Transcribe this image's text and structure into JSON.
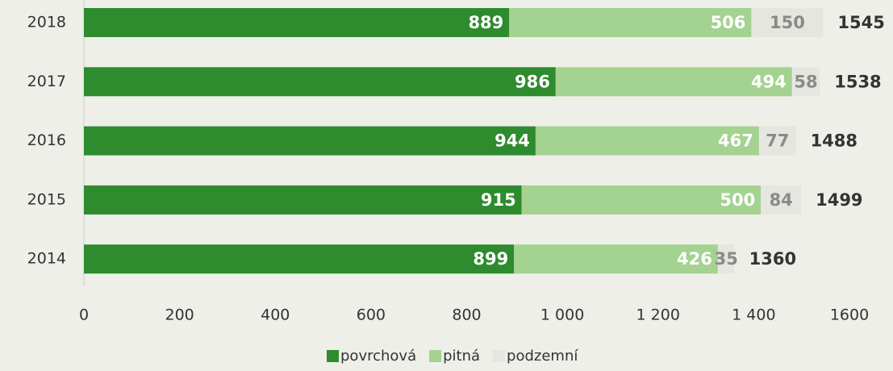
{
  "chart_data": {
    "type": "stacked-bar-horizontal",
    "categories": [
      "2018",
      "2017",
      "2016",
      "2015",
      "2014"
    ],
    "series": [
      {
        "name": "povrchová",
        "color": "#2e8b2e",
        "values": [
          889,
          986,
          944,
          915,
          899
        ]
      },
      {
        "name": "pitná",
        "color": "#a4d290",
        "values": [
          506,
          494,
          467,
          500,
          426
        ]
      },
      {
        "name": "podzemní",
        "color": "#e6e6e1",
        "values": [
          150,
          58,
          77,
          84,
          35
        ]
      }
    ],
    "totals": [
      1545,
      1538,
      1488,
      1499,
      1360
    ],
    "xlim": [
      0,
      1600
    ],
    "xticks": [
      0,
      200,
      400,
      600,
      800,
      {
        "value": 1000,
        "label": "1 000"
      },
      {
        "value": 1200,
        "label": "1 200"
      },
      {
        "value": 1400,
        "label": "1 400"
      },
      1600
    ],
    "legend": "bottom"
  }
}
